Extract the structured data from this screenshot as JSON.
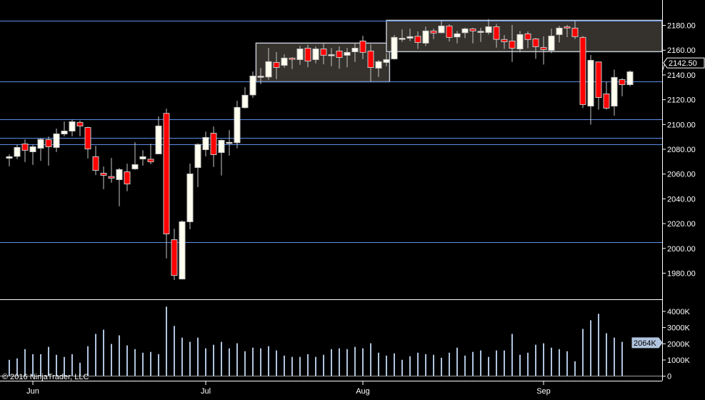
{
  "chart_data": {
    "type": "candlestick",
    "title": "",
    "copyright": "© 2016 NinjaTrader, LLC",
    "colors": {
      "background": "#000000",
      "up_fill": "#fffff0",
      "down_fill": "#ff0000",
      "candle_outline": "#c8c8c8",
      "hline": "#5b8de8",
      "box_fill": "#35312c",
      "box_border": "#c0c8d0",
      "volume": "#b0c4de"
    },
    "price_axis": {
      "ylim": [
        1959.5,
        2200.5
      ],
      "ticks": [
        1980,
        2000,
        2020,
        2040,
        2060,
        2080,
        2100,
        2120,
        2140,
        2160,
        2180
      ],
      "tick_labels": [
        "1980.00",
        "2000.00",
        "2020.00",
        "2040.00",
        "2060.00",
        "2080.00",
        "2100.00",
        "2120.00",
        "2140.00",
        "2160.00",
        "2180.00"
      ],
      "last_price": 2142.5,
      "last_price_label": "2142.50"
    },
    "volume_axis": {
      "ylim": [
        0,
        4700
      ],
      "unit": "K",
      "ticks": [
        0,
        1000,
        2000,
        3000,
        4000
      ],
      "tick_labels": [
        "0",
        "1000K",
        "2000K",
        "3000K",
        "4000K"
      ],
      "last_volume_label": "2064K"
    },
    "date_ticks": [
      {
        "bar": 3,
        "label": "Jun"
      },
      {
        "bar": 25,
        "label": "Jul"
      },
      {
        "bar": 45,
        "label": "Aug"
      },
      {
        "bar": 68,
        "label": "Sep"
      }
    ],
    "horizontal_lines": [
      2183.5,
      2134.5,
      2104.2,
      2089,
      2083.8,
      2005.3
    ],
    "boxes": [
      {
        "from_bar": 31.4,
        "to_bar": 48.4,
        "high": 2165.7,
        "low": 2134.5
      },
      {
        "from_bar": 48.0,
        "to_bar": 83.4,
        "high": 2184.1,
        "low": 2158.8
      }
    ],
    "ohlc": [
      [
        2072.8,
        2075.9,
        2066.3,
        2074.0
      ],
      [
        2074.3,
        2083.6,
        2072.0,
        2081.5
      ],
      [
        2084.3,
        2088.0,
        2069.7,
        2079.2
      ],
      [
        2078.0,
        2083.6,
        2067.4,
        2082.0
      ],
      [
        2080.9,
        2089.0,
        2070.7,
        2088.0
      ],
      [
        2087.8,
        2090.3,
        2066.8,
        2082.0
      ],
      [
        2081.5,
        2096.7,
        2077.8,
        2092.4
      ],
      [
        2092.4,
        2102.4,
        2090.5,
        2094.7
      ],
      [
        2094.7,
        2104.0,
        2090.5,
        2102.2
      ],
      [
        2101.7,
        2103.0,
        2090.5,
        2098.8
      ],
      [
        2097.6,
        2098.2,
        2072.6,
        2080.3
      ],
      [
        2074.0,
        2082.8,
        2059.2,
        2063.0
      ],
      [
        2060.7,
        2066.1,
        2047.8,
        2059.0
      ],
      [
        2058.0,
        2073.0,
        2053.0,
        2056.7
      ],
      [
        2055.5,
        2064.9,
        2034.0,
        2063.6
      ],
      [
        2061.8,
        2068.4,
        2046.1,
        2052.0
      ],
      [
        2064.2,
        2085.7,
        2063.4,
        2067.6
      ],
      [
        2072.2,
        2079.3,
        2066.8,
        2074.0
      ],
      [
        2072.0,
        2084.5,
        2068.0,
        2069.9
      ],
      [
        2076.3,
        2106.5,
        2076.3,
        2098.8
      ],
      [
        2109.0,
        2112.8,
        1991.9,
        2011.7
      ],
      [
        2007.0,
        2015.9,
        1974.5,
        1978.2
      ],
      [
        1975.3,
        2022.6,
        1975.3,
        2021.5
      ],
      [
        2021.5,
        2068.4,
        2015.5,
        2060.1
      ],
      [
        2065.3,
        2084.7,
        2049.5,
        2083.9
      ],
      [
        2079.7,
        2094.3,
        2074.3,
        2089.5
      ],
      [
        2093.0,
        2098.4,
        2065.7,
        2075.7
      ],
      [
        2077.4,
        2088.0,
        2058.8,
        2087.2
      ],
      [
        2085.5,
        2095.5,
        2074.9,
        2085.6
      ],
      [
        2085.3,
        2119.2,
        2080.7,
        2113.8
      ],
      [
        2113.6,
        2130.1,
        2113.0,
        2123.6
      ],
      [
        2123.9,
        2142.8,
        2121.6,
        2139.1
      ],
      [
        2138.9,
        2145.7,
        2132.6,
        2139.0
      ],
      [
        2138.4,
        2161.8,
        2136.1,
        2150.7
      ],
      [
        2150.1,
        2158.4,
        2136.6,
        2146.0
      ],
      [
        2147.8,
        2156.6,
        2145.9,
        2153.6
      ],
      [
        2153.6,
        2154.3,
        2144.7,
        2152.6
      ],
      [
        2152.4,
        2163.5,
        2148.2,
        2161.0
      ],
      [
        2161.6,
        2164.3,
        2146.2,
        2151.2
      ],
      [
        2152.4,
        2163.0,
        2149.3,
        2161.0
      ],
      [
        2161.0,
        2165.5,
        2148.6,
        2155.9
      ],
      [
        2156.3,
        2161.8,
        2147.0,
        2156.4
      ],
      [
        2159.3,
        2163.0,
        2145.1,
        2154.1
      ],
      [
        2155.9,
        2161.8,
        2146.2,
        2158.2
      ],
      [
        2158.7,
        2165.5,
        2150.5,
        2161.6
      ],
      [
        2167.4,
        2171.6,
        2152.8,
        2158.2
      ],
      [
        2159.3,
        2164.7,
        2134.7,
        2146.0
      ],
      [
        2145.5,
        2152.0,
        2138.4,
        2150.7
      ],
      [
        2150.1,
        2157.6,
        2147.0,
        2152.4
      ],
      [
        2153.0,
        2172.2,
        2152.4,
        2170.3
      ],
      [
        2169.5,
        2176.8,
        2166.8,
        2169.6
      ],
      [
        2169.7,
        2177.4,
        2167.4,
        2170.9
      ],
      [
        2171.2,
        2175.1,
        2161.0,
        2166.2
      ],
      [
        2165.7,
        2179.1,
        2163.3,
        2175.5
      ],
      [
        2175.5,
        2177.4,
        2168.9,
        2173.8
      ],
      [
        2174.1,
        2184.1,
        2173.6,
        2179.5
      ],
      [
        2179.5,
        2181.0,
        2167.0,
        2170.3
      ],
      [
        2170.7,
        2175.5,
        2165.5,
        2173.2
      ],
      [
        2174.1,
        2178.0,
        2169.7,
        2177.2
      ],
      [
        2177.2,
        2178.0,
        2165.5,
        2175.5
      ],
      [
        2175.1,
        2178.0,
        2166.6,
        2175.2
      ],
      [
        2174.3,
        2185.1,
        2172.6,
        2178.9
      ],
      [
        2178.9,
        2181.2,
        2162.0,
        2168.7
      ],
      [
        2168.6,
        2172.2,
        2161.0,
        2166.8
      ],
      [
        2167.4,
        2180.3,
        2150.5,
        2161.6
      ],
      [
        2161.0,
        2175.5,
        2158.2,
        2172.6
      ],
      [
        2173.2,
        2175.1,
        2161.6,
        2168.6
      ],
      [
        2169.1,
        2169.9,
        2153.0,
        2162.8
      ],
      [
        2162.2,
        2171.1,
        2148.4,
        2160.5
      ],
      [
        2159.9,
        2177.4,
        2157.6,
        2171.4
      ],
      [
        2172.6,
        2179.7,
        2166.2,
        2177.8
      ],
      [
        2178.9,
        2180.3,
        2170.5,
        2177.8
      ],
      [
        2177.8,
        2183.6,
        2169.1,
        2170.9
      ],
      [
        2170.3,
        2171.4,
        2113.2,
        2116.1
      ],
      [
        2114.9,
        2156.1,
        2099.9,
        2151.8
      ],
      [
        2150.5,
        2150.5,
        2112.0,
        2121.8
      ],
      [
        2124.7,
        2134.5,
        2112.0,
        2113.2
      ],
      [
        2114.9,
        2144.3,
        2107.2,
        2138.0
      ],
      [
        2136.2,
        2137.4,
        2122.8,
        2132.2
      ],
      [
        2132.2,
        2143.7,
        2130.9,
        2142.5
      ]
    ],
    "volume_k": [
      1010,
      1100,
      1670,
      1360,
      1360,
      1810,
      1320,
      1190,
      1360,
      830,
      1850,
      2610,
      2870,
      1990,
      2520,
      1900,
      1670,
      1450,
      1500,
      1360,
      4290,
      3100,
      2380,
      2120,
      2380,
      1720,
      1940,
      2120,
      1720,
      2030,
      1540,
      1760,
      1720,
      1850,
      1590,
      1270,
      1190,
      1190,
      1360,
      1190,
      1320,
      1670,
      1720,
      1670,
      1810,
      1720,
      2030,
      1450,
      1270,
      1410,
      1010,
      1230,
      1450,
      1360,
      1320,
      1140,
      1450,
      1760,
      1270,
      1500,
      1590,
      1190,
      1590,
      1590,
      2610,
      1320,
      1450,
      1940,
      2030,
      1760,
      1670,
      1540,
      920,
      2920,
      3450,
      3850,
      2650,
      2380,
      2120,
      null
    ]
  }
}
